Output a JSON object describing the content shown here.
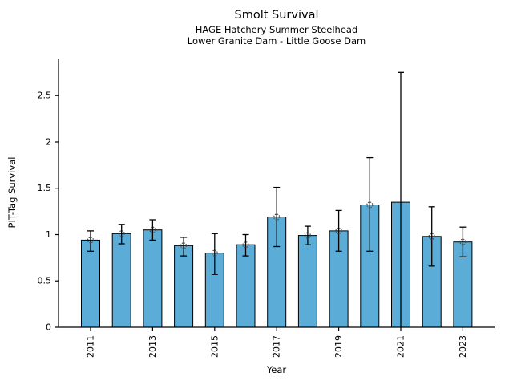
{
  "chart_data": {
    "type": "bar",
    "title": "Smolt Survival",
    "subtitles": [
      "HAGE Hatchery Summer Steelhead",
      "Lower Granite Dam - Little Goose Dam"
    ],
    "xlabel": "Year",
    "ylabel": "PIT-Tag Survival",
    "ylim": [
      0,
      2.9
    ],
    "yticks": [
      0,
      0.5,
      1,
      1.5,
      2,
      2.5
    ],
    "ytick_labels": [
      "0",
      "0.5",
      "1",
      "1.5",
      "2",
      "2.5"
    ],
    "xtick_years": [
      2011,
      2013,
      2015,
      2017,
      2019,
      2021,
      2023
    ],
    "grid": false,
    "legend": "none",
    "spines": [
      "left",
      "bottom"
    ],
    "colors": {
      "bar_fill": "#5BACD6",
      "bar_edge": "#000000",
      "error_bar": "#000000",
      "marker_edge": "#4d4d4d",
      "axis": "#000000",
      "text": "#000000"
    },
    "categories": [
      2011,
      2012,
      2013,
      2014,
      2015,
      2016,
      2017,
      2018,
      2019,
      2020,
      2021,
      2022,
      2023
    ],
    "series": [
      {
        "name": "PIT-Tag Survival",
        "values": [
          0.94,
          1.01,
          1.05,
          0.88,
          0.8,
          0.89,
          1.19,
          0.99,
          1.04,
          1.32,
          1.35,
          0.98,
          0.92
        ],
        "err_low": [
          0.82,
          0.9,
          0.94,
          0.77,
          0.57,
          0.77,
          0.87,
          0.89,
          0.82,
          0.82,
          null,
          0.66,
          0.76
        ],
        "err_high": [
          1.04,
          1.11,
          1.16,
          0.97,
          1.01,
          1.0,
          1.51,
          1.09,
          1.26,
          1.83,
          2.75,
          1.3,
          1.08
        ],
        "point_markers": [
          true,
          true,
          true,
          true,
          true,
          true,
          true,
          true,
          true,
          true,
          false,
          true,
          true
        ]
      }
    ]
  }
}
